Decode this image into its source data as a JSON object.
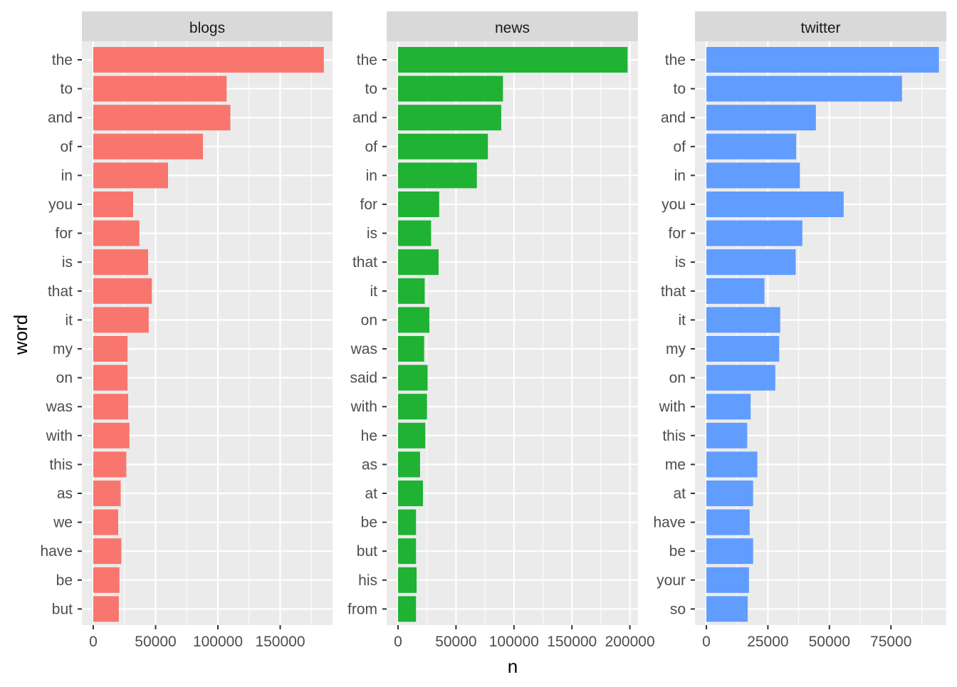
{
  "chart_data": {
    "type": "bar",
    "orientation": "horizontal",
    "xlabel": "n",
    "ylabel": "word",
    "grid": true,
    "legend": "none",
    "panel_background": "#ebebeb",
    "strip_background": "#d9d9d9",
    "panels": [
      {
        "title": "blogs",
        "color": "#f8766d",
        "xlim": [
          0,
          192000
        ],
        "xticks": [
          0,
          50000,
          100000,
          150000
        ],
        "xtick_labels": [
          "0",
          "50000",
          "100000",
          "150000"
        ],
        "categories": [
          "the",
          "to",
          "and",
          "of",
          "in",
          "you",
          "for",
          "is",
          "that",
          "it",
          "my",
          "on",
          "was",
          "with",
          "this",
          "as",
          "we",
          "have",
          "be",
          "but"
        ],
        "values": [
          185000,
          107000,
          110000,
          88000,
          60000,
          32000,
          37000,
          44000,
          47000,
          44500,
          27500,
          27500,
          28000,
          29000,
          26500,
          22000,
          20000,
          22500,
          21000,
          20500
        ]
      },
      {
        "title": "news",
        "color": "#1fb233",
        "xlim": [
          0,
          207000
        ],
        "xticks": [
          0,
          50000,
          100000,
          150000,
          200000
        ],
        "xtick_labels": [
          "0",
          "50000",
          "100000",
          "150000",
          "200000"
        ],
        "categories": [
          "the",
          "to",
          "and",
          "of",
          "in",
          "for",
          "is",
          "that",
          "it",
          "on",
          "was",
          "said",
          "with",
          "he",
          "as",
          "at",
          "be",
          "but",
          "his",
          "from"
        ],
        "values": [
          198000,
          90500,
          89000,
          77500,
          68000,
          35500,
          28500,
          35000,
          23000,
          27000,
          22500,
          25500,
          25000,
          23500,
          19000,
          21500,
          15500,
          15500,
          16000,
          15500
        ]
      },
      {
        "title": "twitter",
        "color": "#619cff",
        "xlim": [
          0,
          97500
        ],
        "xticks": [
          0,
          25000,
          50000,
          75000
        ],
        "xtick_labels": [
          "0",
          "25000",
          "50000",
          "75000"
        ],
        "categories": [
          "the",
          "to",
          "and",
          "of",
          "in",
          "you",
          "for",
          "is",
          "that",
          "it",
          "my",
          "on",
          "with",
          "this",
          "me",
          "at",
          "have",
          "be",
          "your",
          "so"
        ],
        "values": [
          94500,
          79500,
          44500,
          36500,
          38000,
          55800,
          39000,
          36300,
          23600,
          30000,
          29600,
          28000,
          18000,
          16600,
          20700,
          19000,
          17600,
          19000,
          17300,
          16800
        ]
      }
    ]
  }
}
